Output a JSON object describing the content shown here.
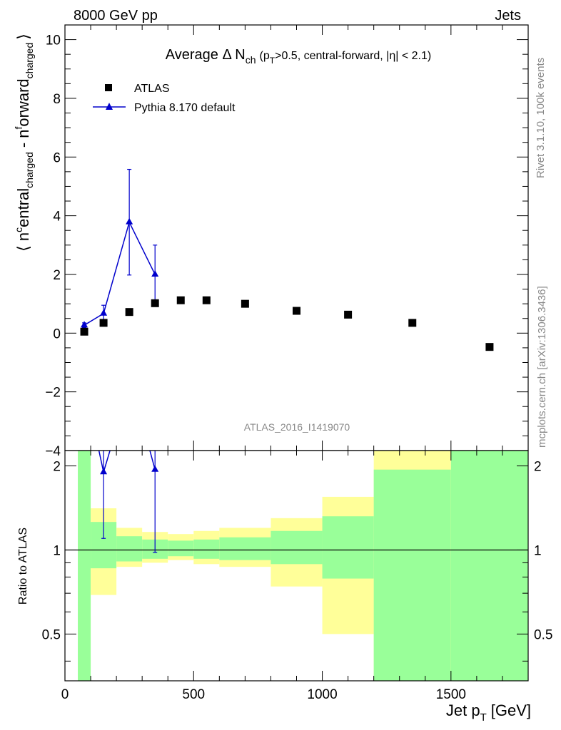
{
  "header": {
    "left": "8000 GeV pp",
    "right": "Jets"
  },
  "side_labels": {
    "rivet": "Rivet 3.1.10,  100k events",
    "mcplots": "mcplots.cern.ch [arXiv:1306.3436]"
  },
  "watermark": "ATLAS_2016_I1419070",
  "colors": {
    "mc": "#0000cc",
    "data": "#000000",
    "band_inner": "#99ff99",
    "band_outer": "#ffff99"
  },
  "chart_data": {
    "type": "scatter",
    "title_main": "Average Δ N",
    "title_sub": "ch",
    "title_cond": "(p",
    "title_cond_sub": "T",
    "title_cond_rest": ">0.5, central-forward, |η| < 2.1)",
    "ylabel": "⟨ n^central_charged - n^forward_charged ⟩",
    "ylabel_parts": {
      "open": "⟨ n",
      "sup1": "c",
      "mid1": "entral",
      "sub1": "charged",
      "mid2": " - n",
      "sup2": "f",
      "mid3": "orward",
      "sub2": "charged",
      "close": "⟩"
    },
    "xlabel_main": "Jet p",
    "xlabel_sub": "T",
    "xlabel_unit": "[GeV]",
    "ratio_ylabel": "Ratio to ATLAS",
    "xlim": [
      0,
      1800
    ],
    "ylim": [
      -4,
      10.5
    ],
    "ratio_ylim": [
      0.34,
      2.27
    ],
    "x_ticks": [
      0,
      500,
      1000,
      1500
    ],
    "x_tick_labels": [
      "0",
      "500",
      "1000",
      "1500"
    ],
    "y_ticks": [
      -4,
      -2,
      0,
      2,
      4,
      6,
      8,
      10
    ],
    "y_tick_labels": [
      "−4",
      "−2",
      "0",
      "2",
      "4",
      "6",
      "8",
      "10"
    ],
    "ratio_ticks": [
      0.5,
      1,
      2
    ],
    "ratio_tick_labels": [
      "0.5",
      "1",
      "2"
    ],
    "legend": [
      {
        "name": "ATLAS",
        "marker": "square"
      },
      {
        "name": "Pythia 8.170 default",
        "marker": "triangle"
      }
    ],
    "legend_position": "top-left",
    "data_series": {
      "name": "ATLAS",
      "points": [
        {
          "x": 75,
          "y": 0.05
        },
        {
          "x": 150,
          "y": 0.35
        },
        {
          "x": 250,
          "y": 0.72
        },
        {
          "x": 350,
          "y": 1.02
        },
        {
          "x": 450,
          "y": 1.12
        },
        {
          "x": 550,
          "y": 1.12
        },
        {
          "x": 700,
          "y": 1.0
        },
        {
          "x": 900,
          "y": 0.76
        },
        {
          "x": 1100,
          "y": 0.63
        },
        {
          "x": 1350,
          "y": 0.35
        },
        {
          "x": 1650,
          "y": -0.47
        }
      ]
    },
    "mc_series": {
      "name": "Pythia 8.170 default",
      "points": [
        {
          "x": 75,
          "y": 0.27,
          "err": 0.08
        },
        {
          "x": 150,
          "y": 0.67,
          "err": 0.28
        },
        {
          "x": 250,
          "y": 3.78,
          "err": 1.8
        },
        {
          "x": 350,
          "y": 2.0,
          "err": 1.0
        }
      ]
    },
    "ratio_bands": [
      {
        "x1": 50,
        "x2": 100,
        "inner": [
          0.34,
          2.27
        ],
        "outer": [
          0.34,
          2.27
        ]
      },
      {
        "x1": 100,
        "x2": 200,
        "inner": [
          0.86,
          1.26
        ],
        "outer": [
          0.69,
          1.41
        ]
      },
      {
        "x1": 200,
        "x2": 300,
        "inner": [
          0.91,
          1.12
        ],
        "outer": [
          0.87,
          1.2
        ]
      },
      {
        "x1": 300,
        "x2": 400,
        "inner": [
          0.93,
          1.09
        ],
        "outer": [
          0.9,
          1.16
        ]
      },
      {
        "x1": 400,
        "x2": 500,
        "inner": [
          0.95,
          1.08
        ],
        "outer": [
          0.92,
          1.14
        ]
      },
      {
        "x1": 500,
        "x2": 600,
        "inner": [
          0.93,
          1.09
        ],
        "outer": [
          0.89,
          1.17
        ]
      },
      {
        "x1": 600,
        "x2": 800,
        "inner": [
          0.92,
          1.11
        ],
        "outer": [
          0.87,
          1.2
        ]
      },
      {
        "x1": 800,
        "x2": 1000,
        "inner": [
          0.89,
          1.17
        ],
        "outer": [
          0.74,
          1.3
        ]
      },
      {
        "x1": 1000,
        "x2": 1200,
        "inner": [
          0.79,
          1.32
        ],
        "outer": [
          0.5,
          1.55
        ]
      },
      {
        "x1": 1200,
        "x2": 1500,
        "inner": [
          0.34,
          1.94
        ],
        "outer": [
          0.34,
          2.27
        ]
      },
      {
        "x1": 1500,
        "x2": 1800,
        "inner": [
          0.34,
          2.27
        ],
        "outer": [
          0.34,
          2.27
        ]
      }
    ],
    "ratio_mc": [
      {
        "x": 150,
        "y": 1.9,
        "err_lo": 0.8,
        "err_hi": 0.9
      },
      {
        "x": 350,
        "y": 1.94,
        "err_lo": 0.96,
        "err_hi": 0.96
      }
    ]
  }
}
